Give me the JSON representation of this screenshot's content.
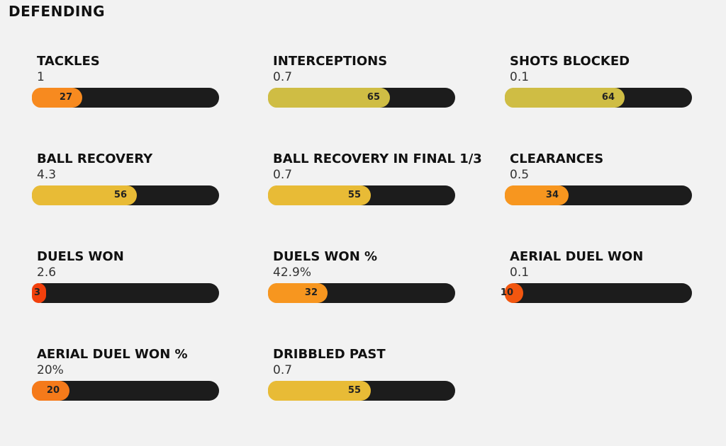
{
  "section": {
    "title": "DEFENDING"
  },
  "chart_data": {
    "type": "bar",
    "title": "DEFENDING",
    "orientation": "horizontal",
    "xlim": [
      0,
      100
    ],
    "metrics": [
      {
        "label": "TACKLES",
        "value": "1",
        "percentile": 27,
        "color": "#f78a1f"
      },
      {
        "label": "INTERCEPTIONS",
        "value": "0.7",
        "percentile": 65,
        "color": "#cfbd44"
      },
      {
        "label": "SHOTS BLOCKED",
        "value": "0.1",
        "percentile": 64,
        "color": "#cfbd44"
      },
      {
        "label": "BALL RECOVERY",
        "value": "4.3",
        "percentile": 56,
        "color": "#e8bb36"
      },
      {
        "label": "BALL RECOVERY IN FINAL 1/3",
        "value": "0.7",
        "percentile": 55,
        "color": "#e8bb36"
      },
      {
        "label": "CLEARANCES",
        "value": "0.5",
        "percentile": 34,
        "color": "#f7961f"
      },
      {
        "label": "DUELS WON",
        "value": "2.6",
        "percentile": 3,
        "color": "#f2400c"
      },
      {
        "label": "DUELS WON %",
        "value": "42.9%",
        "percentile": 32,
        "color": "#f7961f"
      },
      {
        "label": "AERIAL DUEL WON",
        "value": "0.1",
        "percentile": 10,
        "color": "#f2560f"
      },
      {
        "label": "AERIAL DUEL WON %",
        "value": "20%",
        "percentile": 20,
        "color": "#f57a1a"
      },
      {
        "label": "DRIBBLED PAST",
        "value": "0.7",
        "percentile": 55,
        "color": "#e8bb36"
      }
    ]
  }
}
